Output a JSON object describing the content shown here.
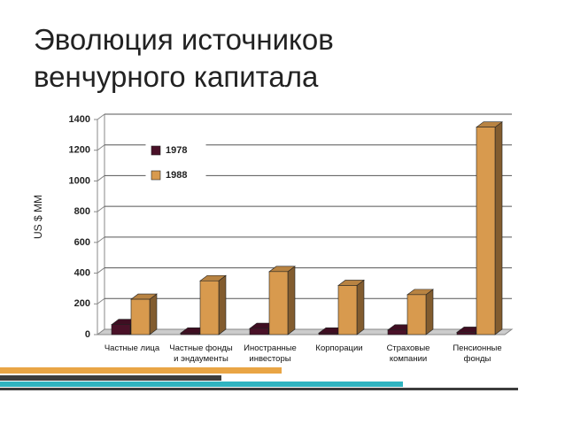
{
  "chart_data": {
    "type": "bar",
    "title": "Эволюция источников венчурного капитала",
    "y_label": "US $ MM",
    "categories": [
      "Частные лица",
      "Частные фонды и эндаументы",
      "Иностранные инвесторы",
      "Корпорации",
      "Страховые компании",
      "Пенсионные фонды"
    ],
    "series": [
      {
        "name": "1978",
        "color": "#4a1128",
        "values": [
          65,
          10,
          40,
          10,
          30,
          15
        ]
      },
      {
        "name": "1988",
        "color": "#d89a4e",
        "values": [
          230,
          350,
          410,
          320,
          260,
          1350
        ]
      }
    ],
    "ylim": [
      0,
      1400
    ],
    "yticks": [
      0,
      200,
      400,
      600,
      800,
      1000,
      1200,
      1400
    ],
    "grid": true,
    "legend": "upper-left"
  }
}
